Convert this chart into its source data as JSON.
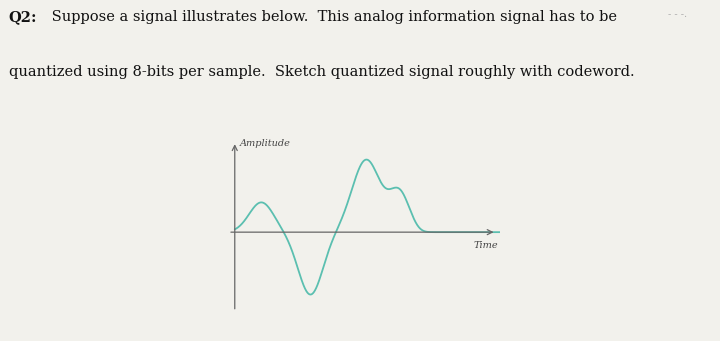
{
  "title_line1": "Q2:  Suppose a signal illustrates below.  This analog information signal has to be",
  "title_line2": "quantized using 8-bits per sample.  Sketch quantized signal roughly with codeword.",
  "signal_color": "#5bbfb0",
  "axis_color": "#666666",
  "background_color": "#f2f1ec",
  "xlabel": "Time",
  "ylabel": "Amplitude",
  "note_text": "- - -.",
  "title_fontsize": 10.5,
  "label_fontsize": 7.0
}
